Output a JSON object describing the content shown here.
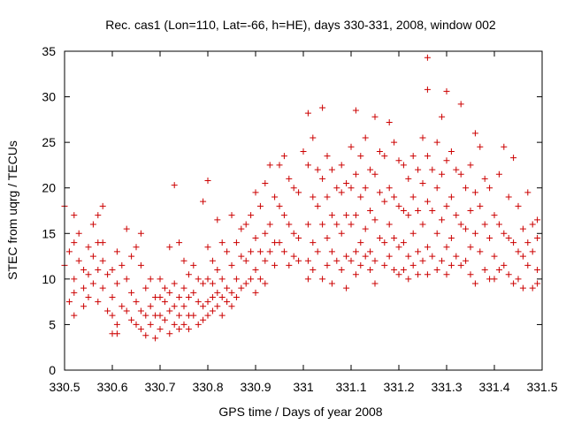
{
  "chart_data": {
    "type": "scatter",
    "title": "Rec. cas1 (Lon=110, Lat=-66, h=HE), days 330-331, 2008, window 002",
    "xlabel": "GPS time / Days of year 2008",
    "ylabel": "STEC from uqrg / TECUs",
    "xlim": [
      330.5,
      331.5
    ],
    "ylim": [
      0,
      35
    ],
    "xticks": [
      "330.5",
      "330.6",
      "330.7",
      "330.8",
      "330.9",
      "331",
      "331.1",
      "331.2",
      "331.3",
      "331.4",
      "331.5"
    ],
    "yticks": [
      "0",
      "5",
      "10",
      "15",
      "20",
      "25",
      "30",
      "35"
    ],
    "grid": false,
    "legend": "none",
    "marker": "plus",
    "color": "#cc0000",
    "points": [
      [
        330.5,
        18.0
      ],
      [
        330.5,
        11.5
      ],
      [
        330.51,
        7.5
      ],
      [
        330.51,
        13.0
      ],
      [
        330.52,
        17.0
      ],
      [
        330.52,
        14.0
      ],
      [
        330.52,
        10.0
      ],
      [
        330.52,
        8.5
      ],
      [
        330.52,
        6.0
      ],
      [
        330.53,
        15.0
      ],
      [
        330.53,
        12.0
      ],
      [
        330.54,
        9.0
      ],
      [
        330.54,
        11.0
      ],
      [
        330.54,
        7.0
      ],
      [
        330.55,
        13.5
      ],
      [
        330.55,
        10.5
      ],
      [
        330.55,
        8.0
      ],
      [
        330.56,
        16.0
      ],
      [
        330.56,
        12.5
      ],
      [
        330.56,
        9.5
      ],
      [
        330.57,
        17.0
      ],
      [
        330.57,
        14.0
      ],
      [
        330.57,
        11.0
      ],
      [
        330.57,
        7.5
      ],
      [
        330.58,
        18.0
      ],
      [
        330.58,
        14.0
      ],
      [
        330.58,
        12.0
      ],
      [
        330.58,
        9.0
      ],
      [
        330.59,
        10.5
      ],
      [
        330.59,
        6.5
      ],
      [
        330.6,
        11.0
      ],
      [
        330.6,
        8.0
      ],
      [
        330.6,
        6.0
      ],
      [
        330.6,
        4.0
      ],
      [
        330.61,
        13.0
      ],
      [
        330.61,
        9.5
      ],
      [
        330.61,
        5.0
      ],
      [
        330.61,
        4.0
      ],
      [
        330.62,
        11.5
      ],
      [
        330.62,
        7.0
      ],
      [
        330.63,
        15.5
      ],
      [
        330.63,
        10.0
      ],
      [
        330.63,
        6.5
      ],
      [
        330.64,
        12.5
      ],
      [
        330.64,
        8.5
      ],
      [
        330.64,
        5.5
      ],
      [
        330.65,
        13.5
      ],
      [
        330.65,
        7.5
      ],
      [
        330.65,
        5.0
      ],
      [
        330.66,
        15.0
      ],
      [
        330.66,
        11.5
      ],
      [
        330.66,
        6.5
      ],
      [
        330.66,
        4.5
      ],
      [
        330.67,
        9.0
      ],
      [
        330.67,
        6.0
      ],
      [
        330.67,
        3.8
      ],
      [
        330.68,
        10.0
      ],
      [
        330.68,
        7.0
      ],
      [
        330.68,
        5.0
      ],
      [
        330.69,
        8.0
      ],
      [
        330.69,
        6.0
      ],
      [
        330.69,
        3.5
      ],
      [
        330.7,
        10.0
      ],
      [
        330.7,
        8.0
      ],
      [
        330.7,
        6.0
      ],
      [
        330.7,
        4.5
      ],
      [
        330.71,
        9.0
      ],
      [
        330.71,
        7.5
      ],
      [
        330.71,
        5.5
      ],
      [
        330.72,
        13.5
      ],
      [
        330.72,
        8.5
      ],
      [
        330.72,
        6.5
      ],
      [
        330.72,
        4.0
      ],
      [
        330.73,
        20.3
      ],
      [
        330.73,
        9.5
      ],
      [
        330.73,
        7.0
      ],
      [
        330.73,
        5.0
      ],
      [
        330.74,
        14.0
      ],
      [
        330.74,
        8.0
      ],
      [
        330.74,
        6.0
      ],
      [
        330.74,
        4.5
      ],
      [
        330.75,
        12.0
      ],
      [
        330.75,
        9.0
      ],
      [
        330.75,
        7.0
      ],
      [
        330.75,
        5.0
      ],
      [
        330.76,
        10.5
      ],
      [
        330.76,
        8.0
      ],
      [
        330.76,
        6.0
      ],
      [
        330.76,
        4.5
      ],
      [
        330.77,
        11.5
      ],
      [
        330.77,
        8.5
      ],
      [
        330.77,
        6.0
      ],
      [
        330.78,
        10.0
      ],
      [
        330.78,
        7.5
      ],
      [
        330.78,
        5.0
      ],
      [
        330.79,
        18.5
      ],
      [
        330.79,
        9.5
      ],
      [
        330.79,
        7.0
      ],
      [
        330.79,
        5.5
      ],
      [
        330.8,
        20.8
      ],
      [
        330.8,
        13.5
      ],
      [
        330.8,
        10.0
      ],
      [
        330.8,
        7.5
      ],
      [
        330.8,
        6.0
      ],
      [
        330.81,
        12.0
      ],
      [
        330.81,
        9.5
      ],
      [
        330.81,
        8.0
      ],
      [
        330.81,
        6.5
      ],
      [
        330.82,
        16.5
      ],
      [
        330.82,
        11.0
      ],
      [
        330.82,
        8.5
      ],
      [
        330.82,
        7.0
      ],
      [
        330.83,
        14.0
      ],
      [
        330.83,
        10.0
      ],
      [
        330.83,
        8.0
      ],
      [
        330.83,
        6.0
      ],
      [
        330.84,
        13.0
      ],
      [
        330.84,
        9.0
      ],
      [
        330.84,
        7.5
      ],
      [
        330.85,
        17.0
      ],
      [
        330.85,
        11.5
      ],
      [
        330.85,
        8.5
      ],
      [
        330.85,
        7.0
      ],
      [
        330.86,
        14.0
      ],
      [
        330.86,
        10.0
      ],
      [
        330.86,
        8.0
      ],
      [
        330.87,
        15.5
      ],
      [
        330.87,
        12.5
      ],
      [
        330.87,
        9.0
      ],
      [
        330.88,
        16.0
      ],
      [
        330.88,
        12.0
      ],
      [
        330.88,
        9.5
      ],
      [
        330.89,
        17.0
      ],
      [
        330.89,
        13.0
      ],
      [
        330.89,
        10.0
      ],
      [
        330.9,
        19.5
      ],
      [
        330.9,
        14.5
      ],
      [
        330.9,
        11.0
      ],
      [
        330.9,
        8.5
      ],
      [
        330.91,
        18.0
      ],
      [
        330.91,
        13.0
      ],
      [
        330.91,
        10.0
      ],
      [
        330.92,
        20.5
      ],
      [
        330.92,
        15.0
      ],
      [
        330.92,
        12.0
      ],
      [
        330.92,
        9.5
      ],
      [
        330.93,
        22.5
      ],
      [
        330.93,
        16.0
      ],
      [
        330.93,
        13.0
      ],
      [
        330.94,
        19.0
      ],
      [
        330.94,
        14.0
      ],
      [
        330.94,
        11.5
      ],
      [
        330.95,
        22.5
      ],
      [
        330.95,
        18.0
      ],
      [
        330.95,
        14.0
      ],
      [
        330.96,
        23.5
      ],
      [
        330.96,
        17.0
      ],
      [
        330.96,
        13.0
      ],
      [
        330.97,
        21.0
      ],
      [
        330.97,
        16.0
      ],
      [
        330.97,
        11.5
      ],
      [
        330.98,
        20.0
      ],
      [
        330.98,
        15.0
      ],
      [
        330.98,
        12.5
      ],
      [
        330.99,
        19.5
      ],
      [
        330.99,
        14.5
      ],
      [
        330.99,
        12.0
      ],
      [
        331.0,
        24.0
      ],
      [
        331.01,
        28.2
      ],
      [
        331.01,
        22.5
      ],
      [
        331.01,
        16.0
      ],
      [
        331.01,
        12.0
      ],
      [
        331.01,
        10.0
      ],
      [
        331.02,
        25.5
      ],
      [
        331.02,
        19.0
      ],
      [
        331.02,
        14.0
      ],
      [
        331.02,
        11.0
      ],
      [
        331.03,
        22.0
      ],
      [
        331.03,
        18.0
      ],
      [
        331.03,
        13.0
      ],
      [
        331.04,
        28.8
      ],
      [
        331.04,
        21.0
      ],
      [
        331.04,
        16.0
      ],
      [
        331.04,
        10.0
      ],
      [
        331.05,
        23.5
      ],
      [
        331.05,
        19.0
      ],
      [
        331.05,
        14.5
      ],
      [
        331.05,
        11.5
      ],
      [
        331.06,
        22.0
      ],
      [
        331.06,
        17.0
      ],
      [
        331.06,
        13.0
      ],
      [
        331.06,
        9.5
      ],
      [
        331.07,
        20.0
      ],
      [
        331.07,
        16.0
      ],
      [
        331.07,
        12.0
      ],
      [
        331.08,
        22.5
      ],
      [
        331.08,
        19.5
      ],
      [
        331.08,
        15.0
      ],
      [
        331.08,
        11.0
      ],
      [
        331.09,
        20.5
      ],
      [
        331.09,
        17.0
      ],
      [
        331.09,
        12.5
      ],
      [
        331.09,
        9.0
      ],
      [
        331.1,
        24.5
      ],
      [
        331.1,
        20.0
      ],
      [
        331.1,
        16.0
      ],
      [
        331.1,
        12.0
      ],
      [
        331.11,
        28.5
      ],
      [
        331.11,
        21.5
      ],
      [
        331.11,
        17.0
      ],
      [
        331.11,
        13.0
      ],
      [
        331.11,
        10.5
      ],
      [
        331.12,
        23.5
      ],
      [
        331.12,
        19.0
      ],
      [
        331.12,
        14.0
      ],
      [
        331.12,
        11.5
      ],
      [
        331.13,
        25.5
      ],
      [
        331.13,
        20.0
      ],
      [
        331.13,
        15.5
      ],
      [
        331.13,
        12.5
      ],
      [
        331.14,
        22.0
      ],
      [
        331.14,
        17.5
      ],
      [
        331.14,
        13.0
      ],
      [
        331.14,
        11.0
      ],
      [
        331.15,
        27.8
      ],
      [
        331.15,
        21.5
      ],
      [
        331.15,
        16.5
      ],
      [
        331.15,
        12.0
      ],
      [
        331.15,
        9.5
      ],
      [
        331.16,
        24.0
      ],
      [
        331.16,
        19.5
      ],
      [
        331.16,
        14.5
      ],
      [
        331.17,
        23.5
      ],
      [
        331.17,
        18.5
      ],
      [
        331.17,
        14.0
      ],
      [
        331.17,
        11.5
      ],
      [
        331.18,
        27.2
      ],
      [
        331.18,
        20.0
      ],
      [
        331.18,
        16.0
      ],
      [
        331.18,
        12.5
      ],
      [
        331.19,
        25.0
      ],
      [
        331.19,
        19.0
      ],
      [
        331.19,
        14.5
      ],
      [
        331.19,
        11.0
      ],
      [
        331.2,
        23.0
      ],
      [
        331.2,
        18.0
      ],
      [
        331.2,
        13.5
      ],
      [
        331.2,
        10.5
      ],
      [
        331.21,
        22.5
      ],
      [
        331.21,
        17.5
      ],
      [
        331.21,
        14.0
      ],
      [
        331.21,
        11.0
      ],
      [
        331.22,
        21.0
      ],
      [
        331.22,
        17.0
      ],
      [
        331.22,
        12.5
      ],
      [
        331.22,
        10.0
      ],
      [
        331.23,
        23.5
      ],
      [
        331.23,
        19.0
      ],
      [
        331.23,
        15.0
      ],
      [
        331.23,
        11.5
      ],
      [
        331.24,
        22.0
      ],
      [
        331.24,
        17.5
      ],
      [
        331.24,
        13.0
      ],
      [
        331.24,
        10.5
      ],
      [
        331.25,
        25.5
      ],
      [
        331.25,
        20.5
      ],
      [
        331.25,
        16.0
      ],
      [
        331.25,
        12.0
      ],
      [
        331.26,
        34.3
      ],
      [
        331.26,
        30.8
      ],
      [
        331.26,
        23.5
      ],
      [
        331.26,
        18.5
      ],
      [
        331.26,
        13.5
      ],
      [
        331.26,
        10.5
      ],
      [
        331.27,
        22.0
      ],
      [
        331.27,
        17.5
      ],
      [
        331.27,
        12.5
      ],
      [
        331.28,
        25.0
      ],
      [
        331.28,
        20.0
      ],
      [
        331.28,
        15.0
      ],
      [
        331.28,
        11.0
      ],
      [
        331.29,
        27.8
      ],
      [
        331.29,
        21.5
      ],
      [
        331.29,
        16.5
      ],
      [
        331.29,
        12.0
      ],
      [
        331.3,
        30.6
      ],
      [
        331.3,
        23.0
      ],
      [
        331.3,
        18.0
      ],
      [
        331.3,
        13.5
      ],
      [
        331.3,
        10.5
      ],
      [
        331.31,
        24.0
      ],
      [
        331.31,
        19.0
      ],
      [
        331.31,
        14.5
      ],
      [
        331.31,
        11.5
      ],
      [
        331.32,
        22.0
      ],
      [
        331.32,
        17.0
      ],
      [
        331.32,
        12.5
      ],
      [
        331.33,
        29.2
      ],
      [
        331.33,
        21.5
      ],
      [
        331.33,
        16.0
      ],
      [
        331.33,
        11.5
      ],
      [
        331.34,
        20.0
      ],
      [
        331.34,
        15.5
      ],
      [
        331.34,
        12.0
      ],
      [
        331.35,
        22.5
      ],
      [
        331.35,
        17.5
      ],
      [
        331.35,
        13.5
      ],
      [
        331.35,
        10.5
      ],
      [
        331.36,
        26.0
      ],
      [
        331.36,
        19.5
      ],
      [
        331.36,
        15.0
      ],
      [
        331.36,
        9.5
      ],
      [
        331.37,
        24.5
      ],
      [
        331.37,
        18.0
      ],
      [
        331.37,
        13.0
      ],
      [
        331.38,
        21.0
      ],
      [
        331.38,
        16.0
      ],
      [
        331.38,
        11.0
      ],
      [
        331.39,
        20.0
      ],
      [
        331.39,
        14.5
      ],
      [
        331.39,
        10.0
      ],
      [
        331.4,
        17.0
      ],
      [
        331.4,
        12.5
      ],
      [
        331.4,
        10.0
      ],
      [
        331.41,
        21.5
      ],
      [
        331.41,
        16.0
      ],
      [
        331.41,
        11.0
      ],
      [
        331.42,
        24.5
      ],
      [
        331.42,
        15.0
      ],
      [
        331.42,
        11.5
      ],
      [
        331.43,
        19.0
      ],
      [
        331.43,
        14.5
      ],
      [
        331.43,
        10.5
      ],
      [
        331.44,
        23.3
      ],
      [
        331.44,
        14.0
      ],
      [
        331.44,
        9.5
      ],
      [
        331.45,
        18.0
      ],
      [
        331.45,
        13.0
      ],
      [
        331.45,
        10.0
      ],
      [
        331.46,
        15.5
      ],
      [
        331.46,
        12.5
      ],
      [
        331.46,
        9.0
      ],
      [
        331.47,
        19.5
      ],
      [
        331.47,
        14.0
      ],
      [
        331.47,
        11.5
      ],
      [
        331.48,
        16.0
      ],
      [
        331.48,
        13.0
      ],
      [
        331.48,
        9.0
      ],
      [
        331.49,
        16.5
      ],
      [
        331.49,
        14.5
      ],
      [
        331.49,
        11.0
      ],
      [
        331.49,
        9.5
      ]
    ]
  }
}
